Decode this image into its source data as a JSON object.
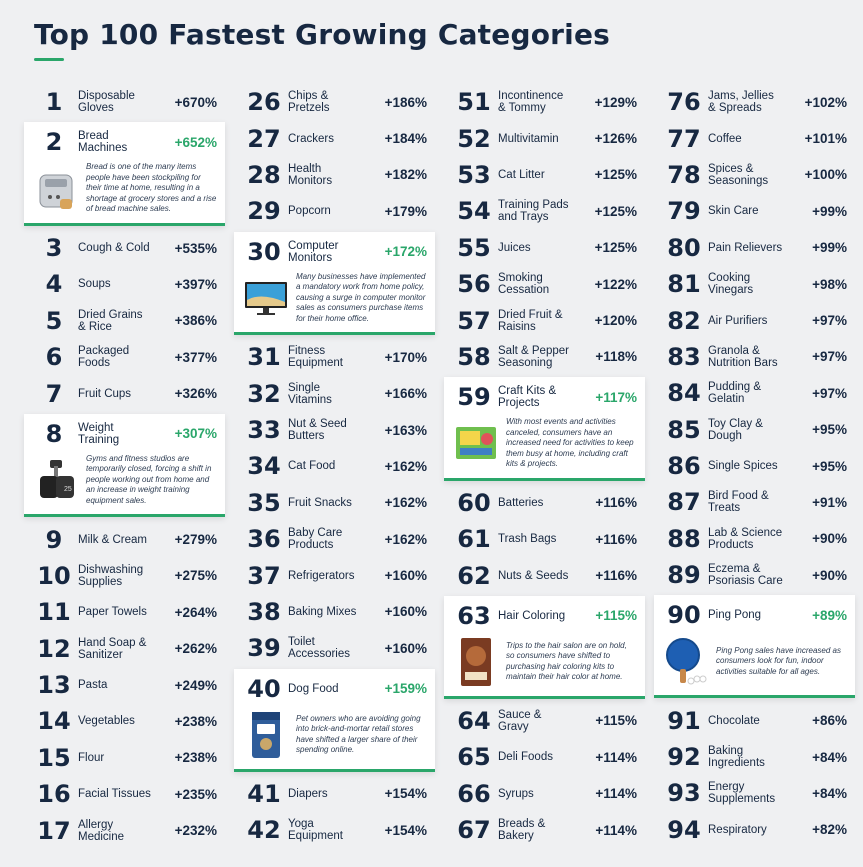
{
  "title": "Top 100 Fastest Growing Categories",
  "accent_color": "#2aa66a",
  "text_color": "#172841",
  "columns": [
    [
      {
        "rank": "1",
        "name": "Disposable Gloves",
        "pct": "+670%"
      },
      {
        "rank": "2",
        "name": "Bread Machines",
        "pct": "+652%",
        "featured": true,
        "icon": "bread-machine-icon",
        "desc": "Bread is one of the many items people have been stockpiling for their time at home, resulting in a shortage at grocery stores and a rise of bread machine sales."
      },
      {
        "rank": "3",
        "name": "Cough & Cold",
        "pct": "+535%"
      },
      {
        "rank": "4",
        "name": "Soups",
        "pct": "+397%"
      },
      {
        "rank": "5",
        "name": "Dried Grains & Rice",
        "pct": "+386%"
      },
      {
        "rank": "6",
        "name": "Packaged Foods",
        "pct": "+377%"
      },
      {
        "rank": "7",
        "name": "Fruit Cups",
        "pct": "+326%"
      },
      {
        "rank": "8",
        "name": "Weight Training",
        "pct": "+307%",
        "featured": true,
        "icon": "dumbbell-icon",
        "desc": "Gyms and fitness studios are temporarily closed, forcing a shift in people working out from home and an increase in weight training equipment sales."
      },
      {
        "rank": "9",
        "name": "Milk & Cream",
        "pct": "+279%"
      },
      {
        "rank": "10",
        "name": "Dishwashing Supplies",
        "pct": "+275%"
      },
      {
        "rank": "11",
        "name": "Paper Towels",
        "pct": "+264%"
      },
      {
        "rank": "12",
        "name": "Hand Soap & Sanitizer",
        "pct": "+262%"
      },
      {
        "rank": "13",
        "name": "Pasta",
        "pct": "+249%"
      },
      {
        "rank": "14",
        "name": "Vegetables",
        "pct": "+238%"
      },
      {
        "rank": "15",
        "name": "Flour",
        "pct": "+238%"
      },
      {
        "rank": "16",
        "name": "Facial Tissues",
        "pct": "+235%"
      },
      {
        "rank": "17",
        "name": "Allergy Medicine",
        "pct": "+232%"
      }
    ],
    [
      {
        "rank": "26",
        "name": "Chips & Pretzels",
        "pct": "+186%"
      },
      {
        "rank": "27",
        "name": "Crackers",
        "pct": "+184%"
      },
      {
        "rank": "28",
        "name": "Health Monitors",
        "pct": "+182%"
      },
      {
        "rank": "29",
        "name": "Popcorn",
        "pct": "+179%"
      },
      {
        "rank": "30",
        "name": "Computer Monitors",
        "pct": "+172%",
        "featured": true,
        "icon": "monitor-icon",
        "desc": "Many businesses have implemented a mandatory work from home policy, causing a surge in computer monitor sales as consumers purchase items for their home office."
      },
      {
        "rank": "31",
        "name": "Fitness Equipment",
        "pct": "+170%"
      },
      {
        "rank": "32",
        "name": "Single Vitamins",
        "pct": "+166%"
      },
      {
        "rank": "33",
        "name": "Nut & Seed Butters",
        "pct": "+163%"
      },
      {
        "rank": "34",
        "name": "Cat Food",
        "pct": "+162%"
      },
      {
        "rank": "35",
        "name": "Fruit Snacks",
        "pct": "+162%"
      },
      {
        "rank": "36",
        "name": "Baby Care Products",
        "pct": "+162%"
      },
      {
        "rank": "37",
        "name": "Refrigerators",
        "pct": "+160%"
      },
      {
        "rank": "38",
        "name": "Baking Mixes",
        "pct": "+160%"
      },
      {
        "rank": "39",
        "name": "Toilet Accessories",
        "pct": "+160%"
      },
      {
        "rank": "40",
        "name": "Dog Food",
        "pct": "+159%",
        "featured": true,
        "icon": "dog-food-bag-icon",
        "desc": "Pet owners who are avoiding going into brick-and-mortar retail stores have shifted a larger share of their spending online."
      },
      {
        "rank": "41",
        "name": "Diapers",
        "pct": "+154%"
      },
      {
        "rank": "42",
        "name": "Yoga Equipment",
        "pct": "+154%"
      }
    ],
    [
      {
        "rank": "51",
        "name": "Incontinence & Tommy",
        "pct": "+129%"
      },
      {
        "rank": "52",
        "name": "Multivitamin",
        "pct": "+126%"
      },
      {
        "rank": "53",
        "name": "Cat Litter",
        "pct": "+125%"
      },
      {
        "rank": "54",
        "name": "Training Pads and Trays",
        "pct": "+125%"
      },
      {
        "rank": "55",
        "name": "Juices",
        "pct": "+125%"
      },
      {
        "rank": "56",
        "name": "Smoking Cessation",
        "pct": "+122%"
      },
      {
        "rank": "57",
        "name": "Dried Fruit & Raisins",
        "pct": "+120%"
      },
      {
        "rank": "58",
        "name": "Salt & Pepper Seasoning",
        "pct": "+118%"
      },
      {
        "rank": "59",
        "name": "Craft Kits & Projects",
        "pct": "+117%",
        "featured": true,
        "icon": "craft-kit-icon",
        "desc": "With most events and activities canceled, consumers have an increased need for activities to keep them busy at home, including craft kits & projects."
      },
      {
        "rank": "60",
        "name": "Batteries",
        "pct": "+116%"
      },
      {
        "rank": "61",
        "name": "Trash Bags",
        "pct": "+116%"
      },
      {
        "rank": "62",
        "name": "Nuts & Seeds",
        "pct": "+116%"
      },
      {
        "rank": "63",
        "name": "Hair Coloring",
        "pct": "+115%",
        "featured": true,
        "icon": "hair-color-box-icon",
        "desc": "Trips to the hair salon are on hold, so consumers have shifted to purchasing hair coloring kits to maintain their hair color at home."
      },
      {
        "rank": "64",
        "name": "Sauce & Gravy",
        "pct": "+115%"
      },
      {
        "rank": "65",
        "name": "Deli Foods",
        "pct": "+114%"
      },
      {
        "rank": "66",
        "name": "Syrups",
        "pct": "+114%"
      },
      {
        "rank": "67",
        "name": "Breads & Bakery",
        "pct": "+114%"
      }
    ],
    [
      {
        "rank": "76",
        "name": "Jams, Jellies & Spreads",
        "pct": "+102%"
      },
      {
        "rank": "77",
        "name": "Coffee",
        "pct": "+101%"
      },
      {
        "rank": "78",
        "name": "Spices & Seasonings",
        "pct": "+100%"
      },
      {
        "rank": "79",
        "name": "Skin Care",
        "pct": "+99%"
      },
      {
        "rank": "80",
        "name": "Pain Relievers",
        "pct": "+99%"
      },
      {
        "rank": "81",
        "name": "Cooking Vinegars",
        "pct": "+98%"
      },
      {
        "rank": "82",
        "name": "Air Purifiers",
        "pct": "+97%"
      },
      {
        "rank": "83",
        "name": "Granola & Nutrition Bars",
        "pct": "+97%"
      },
      {
        "rank": "84",
        "name": "Pudding & Gelatin",
        "pct": "+97%"
      },
      {
        "rank": "85",
        "name": "Toy Clay & Dough",
        "pct": "+95%"
      },
      {
        "rank": "86",
        "name": "Single Spices",
        "pct": "+95%"
      },
      {
        "rank": "87",
        "name": "Bird Food & Treats",
        "pct": "+91%"
      },
      {
        "rank": "88",
        "name": "Lab & Science Products",
        "pct": "+90%"
      },
      {
        "rank": "89",
        "name": "Eczema & Psoriasis Care",
        "pct": "+90%"
      },
      {
        "rank": "90",
        "name": "Ping Pong",
        "pct": "+89%",
        "featured": true,
        "icon": "ping-pong-paddle-icon",
        "desc": "Ping Pong sales have increased as consumers look for fun, indoor activities suitable for all ages."
      },
      {
        "rank": "91",
        "name": "Chocolate",
        "pct": "+86%"
      },
      {
        "rank": "92",
        "name": "Baking Ingredients",
        "pct": "+84%"
      },
      {
        "rank": "93",
        "name": "Energy Supplements",
        "pct": "+84%"
      },
      {
        "rank": "94",
        "name": "Respiratory",
        "pct": "+82%"
      }
    ]
  ]
}
